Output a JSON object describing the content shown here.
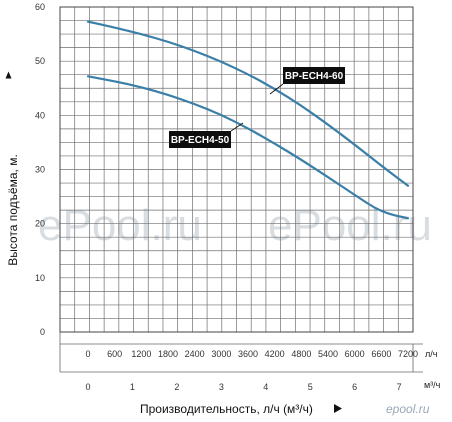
{
  "chart_data": {
    "type": "line",
    "ylabel": "Высота подъёма, м.",
    "xlabel": "Производительность, л/ч (м³/ч)",
    "ylim": [
      0,
      60
    ],
    "y_ticks": [
      "0",
      "10",
      "20",
      "30",
      "40",
      "50",
      "60"
    ],
    "x_lh_unit": "л/ч",
    "x_lh_ticks": [
      "0",
      "600",
      "1200",
      "1800",
      "2400",
      "3000",
      "3600",
      "4200",
      "4800",
      "5400",
      "6000",
      "6600",
      "7200"
    ],
    "x_m3h_unit": "м³/ч",
    "x_m3h_ticks": [
      "0",
      "1",
      "2",
      "3",
      "4",
      "5",
      "6",
      "7"
    ],
    "xlim_lh": [
      0,
      7200
    ],
    "grid": true,
    "series": [
      {
        "name": "BP-ECH4-60",
        "color": "#3a7fa8",
        "x": [
          0,
          600,
          1200,
          1800,
          2400,
          3000,
          3600,
          4200,
          4800,
          5400,
          6000,
          6600,
          7200
        ],
        "y": [
          57.3,
          56.2,
          55.0,
          53.6,
          51.9,
          49.9,
          47.6,
          44.9,
          41.8,
          38.3,
          34.6,
          30.7,
          27.0
        ]
      },
      {
        "name": "BP-ECH4-50",
        "color": "#3a7fa8",
        "x": [
          0,
          600,
          1200,
          1800,
          2400,
          3000,
          3600,
          4200,
          4800,
          5400,
          6000,
          6600,
          7200
        ],
        "y": [
          47.2,
          46.3,
          45.2,
          43.8,
          42.1,
          40.1,
          37.6,
          34.8,
          31.8,
          28.6,
          25.3,
          22.1,
          21.0
        ]
      }
    ]
  },
  "watermark": {
    "left": "ePool.ru",
    "right": "ePool.ru"
  },
  "logo": "epool.ru"
}
